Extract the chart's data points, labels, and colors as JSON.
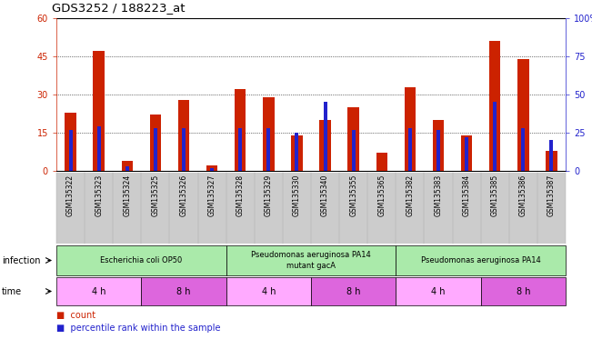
{
  "title": "GDS3252 / 188223_at",
  "samples": [
    "GSM135322",
    "GSM135323",
    "GSM135324",
    "GSM135325",
    "GSM135326",
    "GSM135327",
    "GSM135328",
    "GSM135329",
    "GSM135330",
    "GSM135340",
    "GSM135355",
    "GSM135365",
    "GSM135382",
    "GSM135383",
    "GSM135384",
    "GSM135385",
    "GSM135386",
    "GSM135387"
  ],
  "count_values": [
    23,
    47,
    4,
    22,
    28,
    2,
    32,
    29,
    14,
    20,
    25,
    7,
    33,
    20,
    14,
    51,
    44,
    8
  ],
  "percentile_values": [
    27,
    29,
    3,
    28,
    28,
    2,
    28,
    28,
    25,
    45,
    27,
    0,
    28,
    27,
    22,
    45,
    28,
    20
  ],
  "left_ylim": [
    0,
    60
  ],
  "right_ylim": [
    0,
    100
  ],
  "left_yticks": [
    0,
    15,
    30,
    45,
    60
  ],
  "right_yticks": [
    0,
    25,
    50,
    75,
    100
  ],
  "right_yticklabels": [
    "0",
    "25",
    "50",
    "75",
    "100%"
  ],
  "bar_color": "#cc2200",
  "pct_color": "#2222cc",
  "bg_color": "white",
  "infection_groups": [
    {
      "label": "Escherichia coli OP50",
      "start": 0,
      "end": 6,
      "color": "#aaeaaa"
    },
    {
      "label": "Pseudomonas aeruginosa PA14\nmutant gacA",
      "start": 6,
      "end": 12,
      "color": "#aaeaaa"
    },
    {
      "label": "Pseudomonas aeruginosa PA14",
      "start": 12,
      "end": 18,
      "color": "#aaeaaa"
    }
  ],
  "time_groups": [
    {
      "label": "4 h",
      "start": 0,
      "end": 3,
      "alt": 0
    },
    {
      "label": "8 h",
      "start": 3,
      "end": 6,
      "alt": 1
    },
    {
      "label": "4 h",
      "start": 6,
      "end": 9,
      "alt": 0
    },
    {
      "label": "8 h",
      "start": 9,
      "end": 12,
      "alt": 1
    },
    {
      "label": "4 h",
      "start": 12,
      "end": 15,
      "alt": 0
    },
    {
      "label": "8 h",
      "start": 15,
      "end": 18,
      "alt": 1
    }
  ],
  "time_color_light": "#ffaaff",
  "time_color_dark": "#dd66dd",
  "sample_bg_color": "#cccccc",
  "infection_label": "infection",
  "time_label": "time",
  "legend_count": "count",
  "legend_pct": "percentile rank within the sample"
}
